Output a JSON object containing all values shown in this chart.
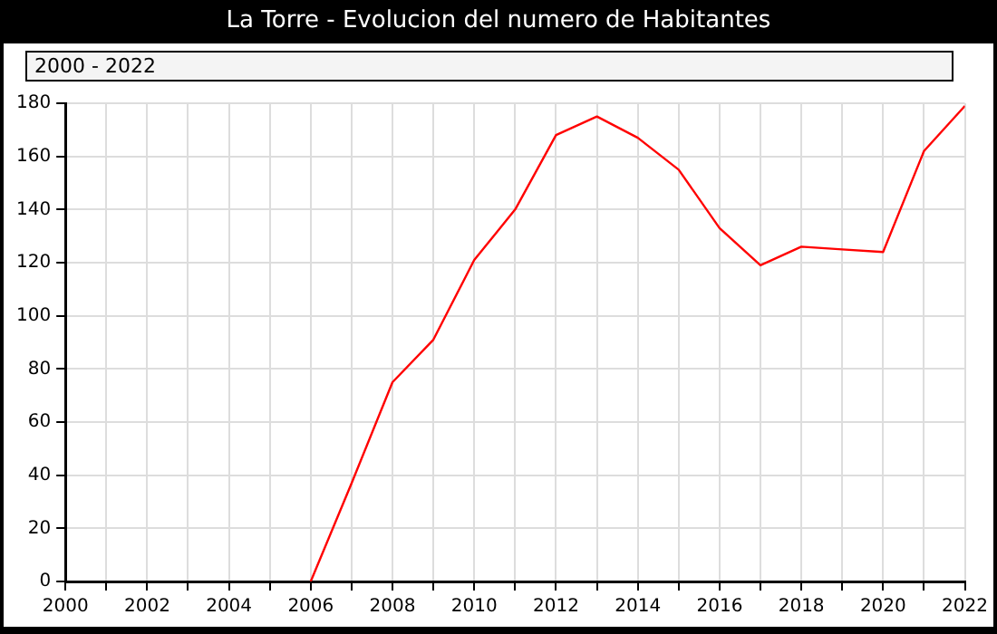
{
  "chart_data": {
    "type": "line",
    "title": "La Torre - Evolucion del numero de Habitantes",
    "subtitle": "2000 - 2022",
    "x": [
      2006,
      2007,
      2008,
      2009,
      2010,
      2011,
      2012,
      2013,
      2014,
      2015,
      2016,
      2017,
      2018,
      2019,
      2020,
      2021,
      2022
    ],
    "series": [
      {
        "color": "#ff0000",
        "values": [
          0,
          37,
          75,
          91,
          121,
          140,
          168,
          175,
          167,
          155,
          133,
          119,
          126,
          125,
          124,
          162,
          179
        ]
      }
    ],
    "xlim": [
      2000,
      2022
    ],
    "xticks": [
      2000,
      {
        "value": 2001,
        "label": null
      },
      2002,
      {
        "value": 2003,
        "label": null
      },
      2004,
      {
        "value": 2005,
        "label": null
      },
      2006,
      {
        "value": 2007,
        "label": null
      },
      2008,
      {
        "value": 2009,
        "label": null
      },
      2010,
      {
        "value": 2011,
        "label": null
      },
      2012,
      {
        "value": 2013,
        "label": null
      },
      2014,
      {
        "value": 2015,
        "label": null
      },
      2016,
      {
        "value": 2017,
        "label": null
      },
      2018,
      {
        "value": 2019,
        "label": null
      },
      2020,
      {
        "value": 2021,
        "label": null
      },
      2022
    ],
    "ylim": [
      0,
      180
    ],
    "yticks": [
      0,
      20,
      40,
      60,
      80,
      100,
      120,
      140,
      160,
      180
    ],
    "grid": true,
    "legend": false,
    "marker": "none",
    "line_style": "solid"
  }
}
